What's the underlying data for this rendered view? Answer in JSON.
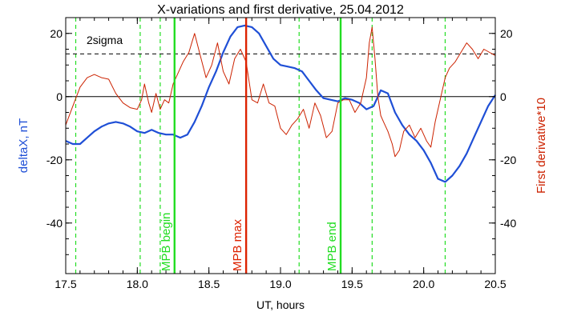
{
  "chart_data": {
    "type": "line",
    "title": "X-variations and first derivative, 25.04.2012",
    "xlabel": "UT, hours",
    "ylabel_left": "deltaX, nT",
    "ylabel_right": "First derivative*10",
    "xlim": [
      17.5,
      20.5
    ],
    "ylim": [
      -56,
      25
    ],
    "x_ticks": [
      {
        "v": 17.5,
        "label": "17.5"
      },
      {
        "v": 18.0,
        "label": "18.0"
      },
      {
        "v": 18.5,
        "label": "18.5"
      },
      {
        "v": 19.0,
        "label": "19.0"
      },
      {
        "v": 19.5,
        "label": "19.5"
      },
      {
        "v": 20.0,
        "label": "20.0"
      },
      {
        "v": 20.5,
        "label": "20.5"
      }
    ],
    "y_ticks": [
      {
        "v": 20,
        "label": "20"
      },
      {
        "v": 0,
        "label": "0"
      },
      {
        "v": -20,
        "label": "-20"
      },
      {
        "v": -40,
        "label": "-40"
      }
    ],
    "colors": {
      "deltaX": "#1f4fd6",
      "derivative": "#cc2200",
      "mpb": "#22dd22",
      "mpb_max": "#dd2200"
    },
    "two_sigma": {
      "value": 13.5,
      "label": "2sigma"
    },
    "zero_line": 0,
    "green_dashed_x": [
      17.57,
      18.02,
      18.16,
      19.13,
      19.64,
      20.15
    ],
    "markers": [
      {
        "x": 18.26,
        "label": "MPB begin",
        "kind": "mpb"
      },
      {
        "x": 18.76,
        "label": "MPB max",
        "kind": "mpb_max"
      },
      {
        "x": 19.42,
        "label": "MPB end",
        "kind": "mpb"
      }
    ],
    "series": [
      {
        "key": "deltaX",
        "x": [
          17.5,
          17.55,
          17.6,
          17.65,
          17.7,
          17.75,
          17.8,
          17.85,
          17.9,
          17.95,
          18.0,
          18.05,
          18.1,
          18.15,
          18.2,
          18.25,
          18.3,
          18.35,
          18.4,
          18.45,
          18.5,
          18.55,
          18.6,
          18.65,
          18.7,
          18.75,
          18.8,
          18.85,
          18.9,
          18.95,
          19.0,
          19.05,
          19.1,
          19.15,
          19.2,
          19.25,
          19.3,
          19.35,
          19.4,
          19.45,
          19.5,
          19.55,
          19.6,
          19.65,
          19.7,
          19.75,
          19.8,
          19.85,
          19.9,
          19.95,
          20.0,
          20.05,
          20.1,
          20.15,
          20.2,
          20.25,
          20.3,
          20.35,
          20.4,
          20.45,
          20.5
        ],
        "y": [
          -14,
          -15,
          -15,
          -13,
          -11,
          -9.5,
          -8.5,
          -8,
          -8.5,
          -9.5,
          -11,
          -11.5,
          -10.5,
          -11.5,
          -12,
          -12,
          -13,
          -12,
          -8,
          -3,
          3,
          8,
          14,
          19,
          22,
          22.5,
          22,
          20,
          16,
          12,
          10,
          9.5,
          9,
          8,
          5,
          2,
          -0.5,
          -1,
          -1.5,
          -0.5,
          -1,
          -2,
          -4,
          -3,
          2,
          1,
          -5,
          -9,
          -12,
          -14,
          -17,
          -21,
          -26,
          -27,
          -25,
          -22,
          -18,
          -13,
          -8,
          -3,
          0.5
        ]
      },
      {
        "key": "derivative",
        "x": [
          17.5,
          17.55,
          17.6,
          17.65,
          17.7,
          17.75,
          17.8,
          17.85,
          17.9,
          17.95,
          18.0,
          18.03,
          18.05,
          18.08,
          18.1,
          18.13,
          18.16,
          18.19,
          18.22,
          18.25,
          18.28,
          18.32,
          18.36,
          18.4,
          18.44,
          18.48,
          18.52,
          18.56,
          18.6,
          18.64,
          18.68,
          18.72,
          18.76,
          18.8,
          18.84,
          18.88,
          18.92,
          18.96,
          19.0,
          19.04,
          19.08,
          19.12,
          19.16,
          19.2,
          19.24,
          19.28,
          19.32,
          19.36,
          19.4,
          19.44,
          19.48,
          19.52,
          19.56,
          19.6,
          19.62,
          19.64,
          19.66,
          19.68,
          19.7,
          19.72,
          19.75,
          19.78,
          19.8,
          19.83,
          19.86,
          19.9,
          19.94,
          19.98,
          20.02,
          20.05,
          20.08,
          20.12,
          20.15,
          20.18,
          20.22,
          20.26,
          20.3,
          20.34,
          20.38,
          20.42,
          20.46,
          20.5
        ],
        "y": [
          -9,
          -3,
          3,
          6,
          7,
          6,
          5.5,
          1,
          -2,
          -3.5,
          -4,
          -1,
          4,
          -2,
          -5,
          1,
          -4,
          -1,
          -2,
          4,
          7,
          11,
          14,
          20,
          13,
          6,
          10,
          17,
          8,
          4,
          12,
          15,
          11,
          -1,
          -2,
          4,
          -2,
          -3,
          -10,
          -12,
          -9,
          -7,
          -4,
          -10,
          -2,
          -6,
          -13,
          -11,
          -2,
          -1,
          -1,
          -5,
          -2,
          6,
          17,
          22,
          12,
          0,
          -6,
          -8,
          -11,
          -15,
          -19,
          -17,
          -11,
          -9,
          -13,
          -10,
          -14,
          -16,
          -8,
          0,
          6,
          9,
          11,
          14,
          17,
          15,
          12,
          15,
          14,
          13
        ]
      }
    ]
  }
}
